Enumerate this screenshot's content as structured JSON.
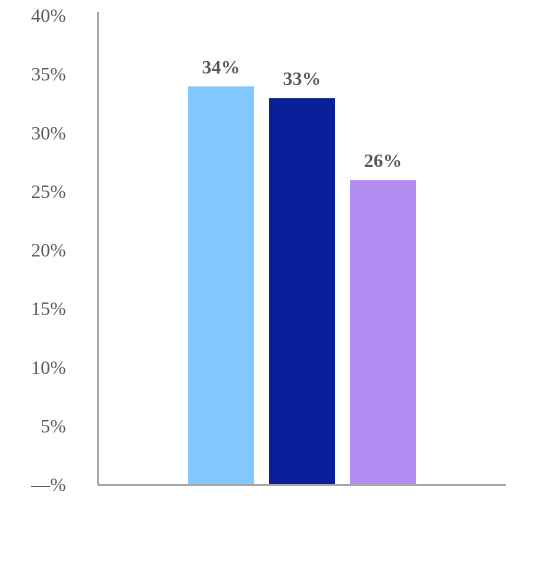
{
  "chart_data": {
    "type": "bar",
    "categories": [
      "",
      "",
      ""
    ],
    "values": [
      34,
      33,
      26
    ],
    "value_labels": [
      "34%",
      "33%",
      "26%"
    ],
    "colors": [
      "#80c8ff",
      "#09209a",
      "#b28ef3"
    ],
    "ylim": [
      0,
      40
    ],
    "yticks": [
      0,
      5,
      10,
      15,
      20,
      25,
      30,
      35,
      40
    ],
    "ytick_labels": [
      "—%",
      "5%",
      "10%",
      "15%",
      "20%",
      "25%",
      "30%",
      "35%",
      "40%"
    ],
    "axis_color": "#a6a6a6",
    "text_color": "#595959",
    "grid": false,
    "legend": "none"
  }
}
